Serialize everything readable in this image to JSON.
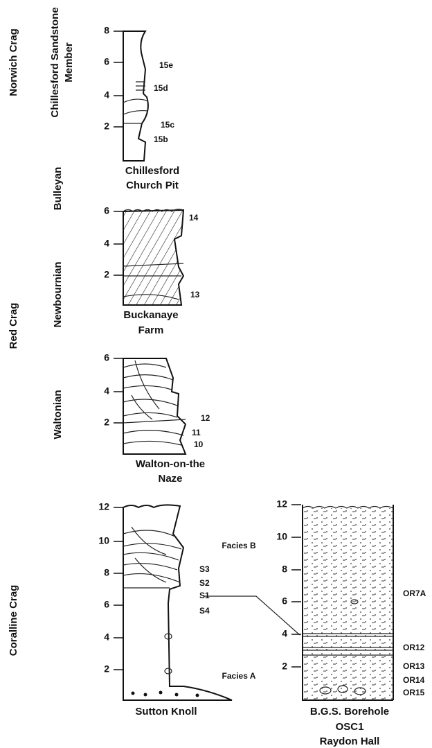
{
  "groups": [
    {
      "label": "Norwich Crag",
      "subgroup_lines": [
        "Chillesford Sandstone",
        "Member"
      ]
    },
    {
      "label": "Red Crag",
      "subgroups": [
        "Newbournian",
        "Bulleyan",
        "Waltonian"
      ]
    },
    {
      "label": "Coralline Crag"
    }
  ],
  "logs": [
    {
      "name_lines": [
        "Chillesford",
        "Church Pit"
      ],
      "scale": [
        "8",
        "6",
        "4",
        "2"
      ],
      "beds": [
        "15e",
        "15d",
        "15c",
        "15b"
      ]
    },
    {
      "name_lines": [
        "Buckanaye",
        "Farm"
      ],
      "scale": [
        "6",
        "4",
        "2"
      ],
      "beds": [
        "14",
        "13"
      ]
    },
    {
      "name_lines": [
        "Walton-on-the",
        "Naze"
      ],
      "scale": [
        "6",
        "4",
        "2"
      ],
      "beds": [
        "12",
        "11",
        "10"
      ]
    },
    {
      "name_lines": [
        "Sutton Knoll"
      ],
      "scale": [
        "12",
        "10",
        "8",
        "6",
        "4",
        "2"
      ],
      "beds": [
        "S3",
        "S2",
        "S1",
        "S4"
      ]
    },
    {
      "name_lines": [
        "B.G.S. Borehole",
        "OSC1",
        "Raydon Hall"
      ],
      "scale": [
        "12",
        "10",
        "8",
        "6",
        "4",
        "2"
      ],
      "facies": [
        "Facies B",
        "Facies A"
      ],
      "beds": [
        "OR7A",
        "OR12",
        "OR13",
        "OR14",
        "OR15"
      ]
    }
  ]
}
